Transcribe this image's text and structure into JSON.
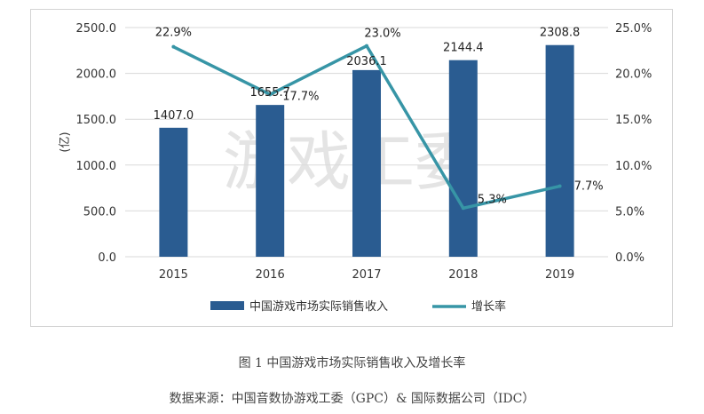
{
  "watermark": "游戏工委",
  "caption": {
    "title": "图 1  中国游戏市场实际销售收入及增长率",
    "source": "数据来源：中国音数协游戏工委（GPC）& 国际数据公司（IDC）"
  },
  "colors": {
    "bar": "#2a5c91",
    "line": "#3795a6"
  },
  "chart_data": {
    "type": "bar",
    "categories": [
      "2015",
      "2016",
      "2017",
      "2018",
      "2019"
    ],
    "series": [
      {
        "name": "中国游戏市场实际销售收入",
        "type": "bar",
        "axis": "left",
        "values": [
          1407.0,
          1655.7,
          2036.1,
          2144.4,
          2308.8
        ],
        "labels": [
          "1407.0",
          "1655.7",
          "2036.1",
          "2144.4",
          "2308.8"
        ]
      },
      {
        "name": "增长率",
        "type": "line",
        "axis": "right",
        "values": [
          22.9,
          17.7,
          23.0,
          5.3,
          7.7
        ],
        "labels": [
          "22.9%",
          "17.7%",
          "23.0%",
          "5.3%",
          "7.7%"
        ]
      }
    ],
    "ylabel": "(亿)",
    "ylim": [
      0,
      2500
    ],
    "y2lim": [
      0,
      25
    ],
    "yticks": [
      "0.0",
      "500.0",
      "1000.0",
      "1500.0",
      "2000.0",
      "2500.0"
    ],
    "y2ticks": [
      "0.0%",
      "5.0%",
      "10.0%",
      "15.0%",
      "20.0%",
      "25.0%"
    ],
    "grid": true,
    "legend_position": "bottom"
  }
}
